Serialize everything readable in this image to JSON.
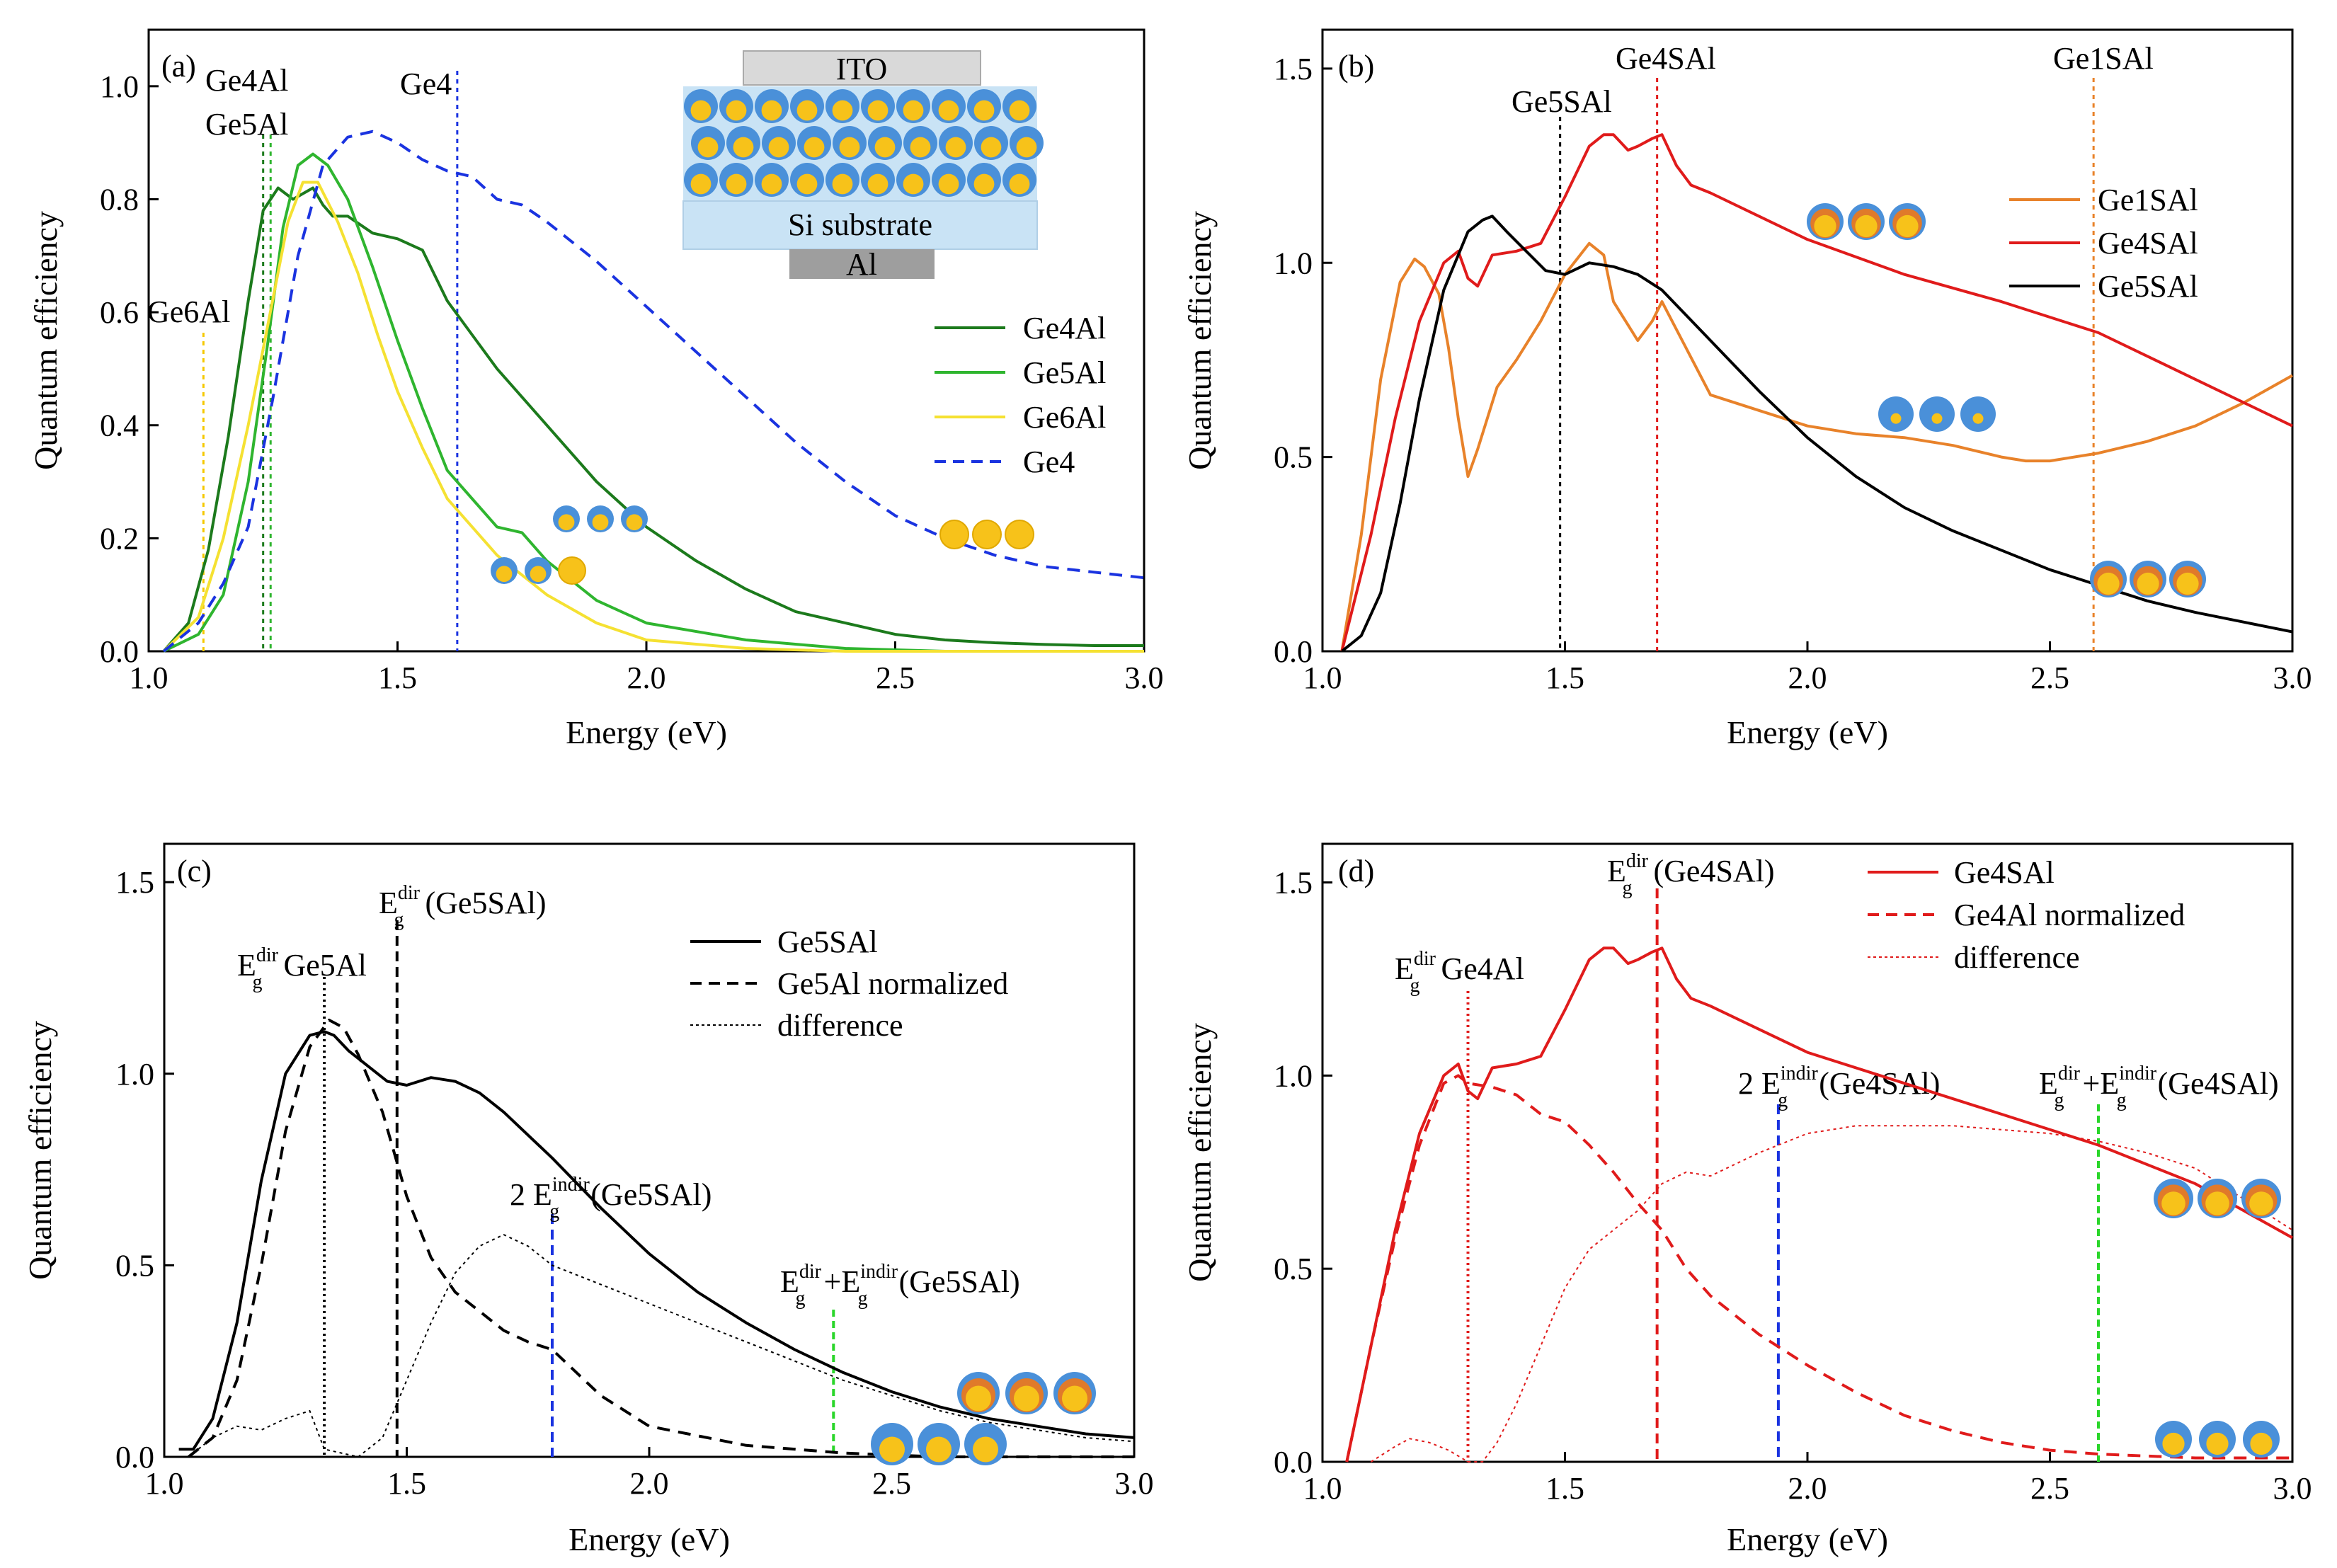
{
  "figure": {
    "colors": {
      "dark_green": "#1c7a1c",
      "green": "#2fb52f",
      "yellow": "#f5e132",
      "blue": "#1a33e0",
      "orange": "#e8822a",
      "red": "#e01b1b",
      "black": "#000000",
      "bright_green": "#2ad62a",
      "dot_blue": "#4a90d9",
      "dot_yellow": "#f7c21a",
      "dot_orange": "#e07a2a",
      "ito_gray": "#d9d9d9",
      "si_blue": "#c9e3f5",
      "al_gray": "#9e9e9e"
    }
  },
  "chart_data": [
    {
      "panel": "(a)",
      "type": "line",
      "xlabel": "Energy (eV)",
      "ylabel": "Quantum efficiency",
      "xlim": [
        1.0,
        3.0
      ],
      "ylim": [
        0.0,
        1.1
      ],
      "xticks": [
        "1.0",
        "1.5",
        "2.0",
        "2.5",
        "3.0"
      ],
      "yticks": [
        "0.0",
        "0.2",
        "0.4",
        "0.6",
        "0.8",
        "1.0"
      ],
      "legend": [
        "Ge4Al",
        "Ge5Al",
        "Ge6Al",
        "Ge4"
      ],
      "inset_labels": [
        "ITO",
        "Si substrate",
        "Al"
      ],
      "markers": [
        {
          "label": "Ge6Al",
          "x": 1.11
        },
        {
          "label": "Ge4Al",
          "x": 1.23
        },
        {
          "label": "Ge5Al",
          "x": 1.245
        },
        {
          "label": "Ge4",
          "x": 1.62
        }
      ],
      "series": [
        {
          "name": "Ge4Al",
          "x": [
            1.03,
            1.08,
            1.12,
            1.16,
            1.2,
            1.23,
            1.26,
            1.29,
            1.31,
            1.33,
            1.35,
            1.37,
            1.4,
            1.45,
            1.5,
            1.55,
            1.6,
            1.65,
            1.7,
            1.8,
            1.9,
            2.0,
            2.1,
            2.2,
            2.3,
            2.4,
            2.5,
            2.6,
            2.7,
            2.8,
            2.9,
            3.0
          ],
          "y": [
            0.0,
            0.05,
            0.18,
            0.38,
            0.62,
            0.78,
            0.82,
            0.8,
            0.81,
            0.82,
            0.79,
            0.77,
            0.77,
            0.74,
            0.73,
            0.71,
            0.62,
            0.56,
            0.5,
            0.4,
            0.3,
            0.22,
            0.16,
            0.11,
            0.07,
            0.05,
            0.03,
            0.02,
            0.015,
            0.012,
            0.01,
            0.01
          ]
        },
        {
          "name": "Ge5Al",
          "x": [
            1.03,
            1.1,
            1.15,
            1.2,
            1.24,
            1.27,
            1.3,
            1.33,
            1.36,
            1.4,
            1.45,
            1.5,
            1.55,
            1.6,
            1.65,
            1.7,
            1.75,
            1.8,
            1.9,
            2.0,
            2.2,
            2.4,
            2.6,
            2.8,
            3.0
          ],
          "y": [
            0.0,
            0.03,
            0.1,
            0.3,
            0.55,
            0.75,
            0.86,
            0.88,
            0.86,
            0.8,
            0.68,
            0.55,
            0.43,
            0.32,
            0.27,
            0.22,
            0.21,
            0.16,
            0.09,
            0.05,
            0.02,
            0.005,
            0.0,
            0.0,
            0.0
          ]
        },
        {
          "name": "Ge6Al",
          "x": [
            1.03,
            1.1,
            1.15,
            1.2,
            1.24,
            1.28,
            1.31,
            1.34,
            1.38,
            1.42,
            1.46,
            1.5,
            1.55,
            1.6,
            1.7,
            1.8,
            1.9,
            2.0,
            2.2,
            2.4,
            2.6,
            2.8,
            3.0
          ],
          "y": [
            0.0,
            0.06,
            0.2,
            0.4,
            0.58,
            0.76,
            0.83,
            0.83,
            0.76,
            0.67,
            0.56,
            0.46,
            0.36,
            0.27,
            0.17,
            0.1,
            0.05,
            0.02,
            0.005,
            0.0,
            0.0,
            0.0,
            0.0
          ]
        },
        {
          "name": "Ge4",
          "x": [
            1.03,
            1.1,
            1.15,
            1.2,
            1.25,
            1.3,
            1.35,
            1.4,
            1.45,
            1.5,
            1.55,
            1.6,
            1.65,
            1.7,
            1.75,
            1.8,
            1.9,
            2.0,
            2.1,
            2.2,
            2.3,
            2.4,
            2.5,
            2.6,
            2.7,
            2.8,
            2.9,
            3.0
          ],
          "y": [
            0.0,
            0.05,
            0.12,
            0.22,
            0.45,
            0.7,
            0.86,
            0.91,
            0.92,
            0.9,
            0.87,
            0.85,
            0.84,
            0.8,
            0.79,
            0.76,
            0.69,
            0.61,
            0.53,
            0.45,
            0.37,
            0.3,
            0.24,
            0.2,
            0.17,
            0.15,
            0.14,
            0.13
          ]
        }
      ]
    },
    {
      "panel": "(b)",
      "type": "line",
      "xlabel": "Energy (eV)",
      "ylabel": "Quantum efficiency",
      "xlim": [
        1.0,
        3.0
      ],
      "ylim": [
        0.0,
        1.6
      ],
      "xticks": [
        "1.0",
        "1.5",
        "2.0",
        "2.5",
        "3.0"
      ],
      "yticks": [
        "0.0",
        "0.5",
        "1.0",
        "1.5"
      ],
      "legend": [
        "Ge1SAl",
        "Ge4SAl",
        "Ge5SAl"
      ],
      "markers": [
        {
          "label": "Ge5SAl",
          "x": 1.49
        },
        {
          "label": "Ge4SAl",
          "x": 1.69
        },
        {
          "label": "Ge1SAl",
          "x": 2.59
        }
      ],
      "series": [
        {
          "name": "Ge1SAl",
          "x": [
            1.04,
            1.08,
            1.12,
            1.16,
            1.19,
            1.21,
            1.24,
            1.26,
            1.28,
            1.3,
            1.32,
            1.34,
            1.36,
            1.4,
            1.45,
            1.5,
            1.55,
            1.58,
            1.6,
            1.63,
            1.65,
            1.68,
            1.7,
            1.75,
            1.8,
            1.9,
            2.0,
            2.1,
            2.2,
            2.3,
            2.4,
            2.45,
            2.5,
            2.6,
            2.7,
            2.8,
            2.9,
            3.0
          ],
          "y": [
            0.0,
            0.3,
            0.7,
            0.95,
            1.01,
            0.99,
            0.92,
            0.78,
            0.6,
            0.45,
            0.52,
            0.6,
            0.68,
            0.75,
            0.85,
            0.97,
            1.05,
            1.02,
            0.9,
            0.84,
            0.8,
            0.85,
            0.9,
            0.78,
            0.66,
            0.62,
            0.58,
            0.56,
            0.55,
            0.53,
            0.5,
            0.49,
            0.49,
            0.51,
            0.54,
            0.58,
            0.64,
            0.71
          ]
        },
        {
          "name": "Ge4SAl",
          "x": [
            1.04,
            1.1,
            1.15,
            1.2,
            1.25,
            1.28,
            1.3,
            1.32,
            1.35,
            1.4,
            1.45,
            1.5,
            1.55,
            1.58,
            1.6,
            1.63,
            1.65,
            1.68,
            1.7,
            1.73,
            1.76,
            1.8,
            1.9,
            2.0,
            2.2,
            2.4,
            2.6,
            2.8,
            3.0
          ],
          "y": [
            0.0,
            0.3,
            0.6,
            0.85,
            1.0,
            1.03,
            0.96,
            0.94,
            1.02,
            1.03,
            1.05,
            1.17,
            1.3,
            1.33,
            1.33,
            1.29,
            1.3,
            1.32,
            1.33,
            1.25,
            1.2,
            1.18,
            1.12,
            1.06,
            0.97,
            0.9,
            0.82,
            0.7,
            0.58
          ]
        },
        {
          "name": "Ge5SAl",
          "x": [
            1.04,
            1.08,
            1.12,
            1.16,
            1.2,
            1.25,
            1.3,
            1.33,
            1.35,
            1.38,
            1.42,
            1.46,
            1.5,
            1.55,
            1.6,
            1.65,
            1.7,
            1.8,
            1.9,
            2.0,
            2.1,
            2.2,
            2.3,
            2.4,
            2.5,
            2.6,
            2.7,
            2.8,
            2.9,
            3.0
          ],
          "y": [
            0.0,
            0.04,
            0.15,
            0.38,
            0.65,
            0.93,
            1.08,
            1.11,
            1.12,
            1.08,
            1.03,
            0.98,
            0.97,
            1.0,
            0.99,
            0.97,
            0.93,
            0.8,
            0.67,
            0.55,
            0.45,
            0.37,
            0.31,
            0.26,
            0.21,
            0.17,
            0.13,
            0.1,
            0.075,
            0.05
          ]
        }
      ]
    },
    {
      "panel": "(c)",
      "type": "line",
      "xlabel": "Energy (eV)",
      "ylabel": "Quantum efficiency",
      "xlim": [
        1.0,
        3.0
      ],
      "ylim": [
        0.0,
        1.6
      ],
      "xticks": [
        "1.0",
        "1.5",
        "2.0",
        "2.5",
        "3.0"
      ],
      "yticks": [
        "0.0",
        "0.5",
        "1.0",
        "1.5"
      ],
      "legend": [
        "Ge5SAl",
        "Ge5Al normalized",
        "difference"
      ],
      "markers": [
        {
          "label": "Ge5Al",
          "x": 1.33,
          "color": "black"
        },
        {
          "label": "(Ge5SAl)",
          "x": 1.48,
          "color": "black"
        },
        {
          "label": "(Ge5SAl)",
          "x": 1.8,
          "color": "blue"
        },
        {
          "label": "(Ge5SAl)",
          "x": 2.38,
          "color": "green"
        }
      ],
      "series": [
        {
          "name": "Ge5SAl",
          "x": [
            1.03,
            1.06,
            1.1,
            1.15,
            1.2,
            1.25,
            1.3,
            1.33,
            1.35,
            1.38,
            1.42,
            1.46,
            1.5,
            1.55,
            1.6,
            1.65,
            1.7,
            1.8,
            1.9,
            2.0,
            2.1,
            2.2,
            2.3,
            2.4,
            2.5,
            2.6,
            2.7,
            2.8,
            2.9,
            3.0
          ],
          "y": [
            0.02,
            0.02,
            0.1,
            0.35,
            0.72,
            1.0,
            1.1,
            1.11,
            1.1,
            1.06,
            1.02,
            0.98,
            0.97,
            0.99,
            0.98,
            0.95,
            0.9,
            0.78,
            0.65,
            0.53,
            0.43,
            0.35,
            0.28,
            0.22,
            0.17,
            0.13,
            0.1,
            0.08,
            0.06,
            0.05
          ]
        },
        {
          "name": "Ge5Al normalized",
          "x": [
            1.05,
            1.1,
            1.15,
            1.2,
            1.25,
            1.3,
            1.34,
            1.37,
            1.4,
            1.45,
            1.5,
            1.55,
            1.6,
            1.65,
            1.7,
            1.75,
            1.8,
            1.9,
            2.0,
            2.2,
            2.4,
            2.6,
            2.8,
            3.0
          ],
          "y": [
            0.0,
            0.05,
            0.2,
            0.5,
            0.85,
            1.07,
            1.14,
            1.12,
            1.05,
            0.9,
            0.68,
            0.52,
            0.43,
            0.38,
            0.33,
            0.3,
            0.28,
            0.16,
            0.08,
            0.03,
            0.01,
            0.0,
            0.0,
            0.0
          ]
        },
        {
          "name": "difference",
          "x": [
            1.05,
            1.1,
            1.15,
            1.2,
            1.25,
            1.3,
            1.33,
            1.4,
            1.45,
            1.5,
            1.55,
            1.6,
            1.65,
            1.7,
            1.75,
            1.8,
            1.9,
            2.0,
            2.1,
            2.2,
            2.3,
            2.4,
            2.5,
            2.6,
            2.7,
            2.8,
            2.9,
            3.0
          ],
          "y": [
            0.0,
            0.05,
            0.08,
            0.07,
            0.1,
            0.12,
            0.02,
            0.0,
            0.05,
            0.2,
            0.35,
            0.48,
            0.55,
            0.58,
            0.55,
            0.5,
            0.45,
            0.4,
            0.35,
            0.3,
            0.25,
            0.2,
            0.16,
            0.12,
            0.09,
            0.07,
            0.05,
            0.04
          ]
        }
      ]
    },
    {
      "panel": "(d)",
      "type": "line",
      "xlabel": "Energy (eV)",
      "ylabel": "Quantum efficiency",
      "xlim": [
        1.0,
        3.0
      ],
      "ylim": [
        0.0,
        1.6
      ],
      "xticks": [
        "1.0",
        "1.5",
        "2.0",
        "2.5",
        "3.0"
      ],
      "yticks": [
        "0.0",
        "0.5",
        "1.0",
        "1.5"
      ],
      "legend": [
        "Ge4SAl",
        "Ge4Al normalized",
        "difference"
      ],
      "markers": [
        {
          "label": "Ge4Al",
          "x": 1.3,
          "color": "red"
        },
        {
          "label": "(Ge4SAl)",
          "x": 1.69,
          "color": "red"
        },
        {
          "label": "(Ge4SAl)",
          "x": 1.94,
          "color": "blue"
        },
        {
          "label": "(Ge4SAl)",
          "x": 2.6,
          "color": "green"
        }
      ],
      "series": [
        {
          "name": "Ge4SAl",
          "x": [
            1.05,
            1.1,
            1.15,
            1.2,
            1.25,
            1.28,
            1.3,
            1.32,
            1.35,
            1.4,
            1.45,
            1.5,
            1.55,
            1.58,
            1.6,
            1.63,
            1.65,
            1.68,
            1.7,
            1.73,
            1.76,
            1.8,
            1.9,
            2.0,
            2.2,
            2.4,
            2.6,
            2.8,
            3.0
          ],
          "y": [
            0.0,
            0.3,
            0.6,
            0.85,
            1.0,
            1.03,
            0.96,
            0.94,
            1.02,
            1.03,
            1.05,
            1.17,
            1.3,
            1.33,
            1.33,
            1.29,
            1.3,
            1.32,
            1.33,
            1.25,
            1.2,
            1.18,
            1.12,
            1.06,
            0.98,
            0.9,
            0.82,
            0.72,
            0.58
          ]
        },
        {
          "name": "Ge4Al normalized",
          "x": [
            1.05,
            1.1,
            1.15,
            1.2,
            1.25,
            1.28,
            1.3,
            1.35,
            1.4,
            1.45,
            1.5,
            1.55,
            1.6,
            1.65,
            1.7,
            1.75,
            1.8,
            1.9,
            2.0,
            2.1,
            2.2,
            2.3,
            2.4,
            2.5,
            2.6,
            2.8,
            3.0
          ],
          "y": [
            0.0,
            0.3,
            0.58,
            0.82,
            0.98,
            1.0,
            0.98,
            0.97,
            0.95,
            0.9,
            0.88,
            0.82,
            0.75,
            0.67,
            0.6,
            0.5,
            0.43,
            0.33,
            0.25,
            0.18,
            0.12,
            0.08,
            0.05,
            0.03,
            0.02,
            0.01,
            0.01
          ]
        },
        {
          "name": "difference",
          "x": [
            1.1,
            1.15,
            1.18,
            1.22,
            1.26,
            1.3,
            1.33,
            1.36,
            1.4,
            1.45,
            1.5,
            1.55,
            1.6,
            1.65,
            1.7,
            1.75,
            1.8,
            1.9,
            2.0,
            2.1,
            2.2,
            2.3,
            2.4,
            2.5,
            2.6,
            2.7,
            2.8,
            2.9,
            3.0
          ],
          "y": [
            0.0,
            0.04,
            0.06,
            0.05,
            0.03,
            0.0,
            0.0,
            0.05,
            0.15,
            0.3,
            0.45,
            0.55,
            0.6,
            0.65,
            0.72,
            0.75,
            0.74,
            0.8,
            0.85,
            0.87,
            0.87,
            0.87,
            0.86,
            0.85,
            0.83,
            0.8,
            0.76,
            0.68,
            0.6
          ]
        }
      ]
    }
  ]
}
